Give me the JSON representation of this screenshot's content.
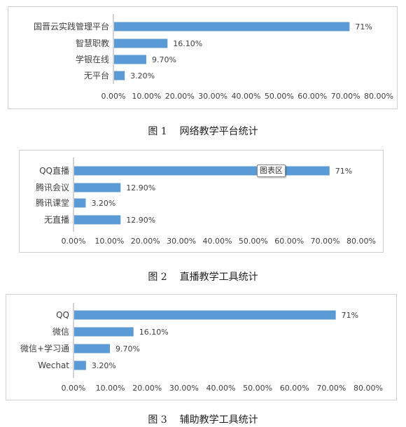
{
  "chart_data": [
    {
      "type": "bar",
      "orientation": "horizontal",
      "categories": [
        "国晋云实践管理平台",
        "智慧职教",
        "学银在线",
        "无平台"
      ],
      "values": [
        71,
        16.1,
        9.7,
        3.2
      ],
      "data_labels": [
        "71%",
        "16.10%",
        "9.70%",
        "3.20%"
      ],
      "xlim": [
        0,
        80
      ],
      "ticks": [
        "0.00%",
        "10.00%",
        "20.00%",
        "30.00%",
        "40.00%",
        "50.00%",
        "60.00%",
        "70.00%",
        "80.00%"
      ],
      "grid": false,
      "bar_color": "#5b9bd5"
    },
    {
      "type": "bar",
      "orientation": "horizontal",
      "categories": [
        "QQ直播",
        "腾讯会议",
        "腾讯课堂",
        "无直播"
      ],
      "values": [
        71,
        12.9,
        3.2,
        12.9
      ],
      "data_labels": [
        "71%",
        "12.90%",
        "3.20%",
        "12.90%"
      ],
      "xlim": [
        0,
        80
      ],
      "ticks": [
        "0.00%",
        "10.00%",
        "20.00%",
        "30.00%",
        "40.00%",
        "50.00%",
        "60.00%",
        "70.00%",
        "80.00%"
      ],
      "grid": false,
      "bar_color": "#5b9bd5"
    },
    {
      "type": "bar",
      "orientation": "horizontal",
      "categories": [
        "QQ",
        "微信",
        "微信+学习通",
        "Wechat"
      ],
      "values": [
        71,
        16.1,
        9.7,
        3.2
      ],
      "data_labels": [
        "71%",
        "16.10%",
        "9.70%",
        "3.20%"
      ],
      "xlim": [
        0,
        80
      ],
      "ticks": [
        "0.00%",
        "10.00%",
        "20.00%",
        "30.00%",
        "40.00%",
        "50.00%",
        "60.00%",
        "70.00%",
        "80.00%"
      ],
      "grid": false,
      "bar_color": "#5b9bd5"
    }
  ],
  "captions": [
    {
      "num": "图 1",
      "text": "网络教学平台统计"
    },
    {
      "num": "图 2",
      "text": "直播教学工具统计"
    },
    {
      "num": "图 3",
      "text": "辅助教学工具统计"
    }
  ],
  "tooltip": {
    "text": "图表区"
  }
}
